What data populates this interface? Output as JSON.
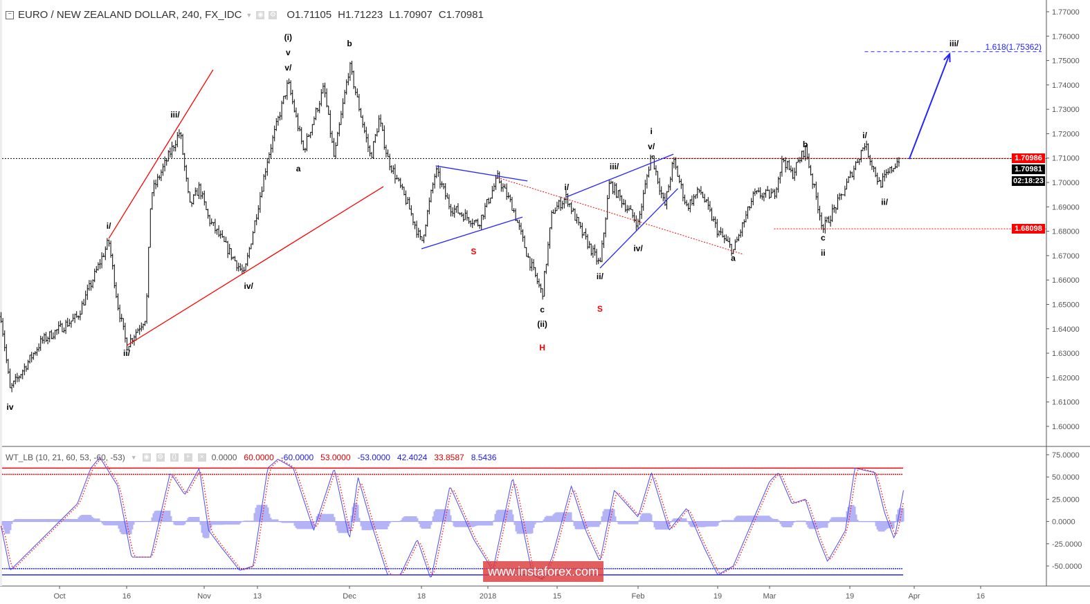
{
  "header": {
    "symbol": "EURO / NEW ZEALAND DOLLAR, 240, FX_IDC",
    "open": "O1.71105",
    "high": "H1.71223",
    "low": "L1.70907",
    "close": "C1.70981"
  },
  "price_tags": {
    "resistance": "1.70986",
    "last": "1.70981",
    "countdown": "02:18:23",
    "support": "1.68098"
  },
  "indicator_header": {
    "name": "WT_LB (10, 21, 60, 53, -60, -53)",
    "values": [
      "0.0000",
      "60.0000",
      "-60.0000",
      "53.0000",
      "-53.0000",
      "42.4024",
      "33.8587",
      "8.5436"
    ],
    "value_colors": [
      "#555555",
      "#e00000",
      "#2020e0",
      "#e00000",
      "#2020e0",
      "#2020e0",
      "#e00000",
      "#2020e0"
    ]
  },
  "watermark": "www.instaforex.com",
  "colors": {
    "up_down_bars": "#000000",
    "red": "#ff0000",
    "blue": "#2323ff",
    "osc_fill": "#b3b3f5"
  },
  "chart_data": [
    {
      "type": "ohlc",
      "title": "EURO / NEW ZEALAND DOLLAR, 240, FX_IDC",
      "ylim": [
        1.595,
        1.772
      ],
      "yticks": [
        "1.77000",
        "1.76000",
        "1.75000",
        "1.74000",
        "1.73000",
        "1.72000",
        "1.71000",
        "1.70000",
        "1.69000",
        "1.68000",
        "1.67000",
        "1.66000",
        "1.65000",
        "1.64000",
        "1.63000",
        "1.62000",
        "1.61000",
        "1.60000"
      ],
      "xticks": [
        {
          "label": "Oct",
          "date": "2017-10-01"
        },
        {
          "label": "16",
          "date": "2017-10-16"
        },
        {
          "label": "Nov",
          "date": "2017-11-01"
        },
        {
          "label": "13",
          "date": "2017-11-13"
        },
        {
          "label": "Dec",
          "date": "2017-12-01"
        },
        {
          "label": "18",
          "date": "2017-12-18"
        },
        {
          "label": "2018",
          "date": "2018-01-01"
        },
        {
          "label": "15",
          "date": "2018-01-15"
        },
        {
          "label": "Feb",
          "date": "2018-02-01"
        },
        {
          "label": "19",
          "date": "2018-02-19"
        },
        {
          "label": "Mar",
          "date": "2018-03-01"
        },
        {
          "label": "19",
          "date": "2018-03-19"
        },
        {
          "label": "Apr",
          "date": "2018-04-01"
        },
        {
          "label": "16",
          "date": "2018-04-16"
        }
      ],
      "price_path": [
        [
          "2017-09-18",
          1.645
        ],
        [
          "2017-09-20",
          1.615
        ],
        [
          "2017-09-27",
          1.635
        ],
        [
          "2017-10-05",
          1.645
        ],
        [
          "2017-10-12",
          1.676
        ],
        [
          "2017-10-14",
          1.65
        ],
        [
          "2017-10-16",
          1.633
        ],
        [
          "2017-10-20",
          1.645
        ],
        [
          "2017-10-21",
          1.695
        ],
        [
          "2017-10-27",
          1.721
        ],
        [
          "2017-10-29",
          1.69
        ],
        [
          "2017-10-31",
          1.698
        ],
        [
          "2017-11-02",
          1.685
        ],
        [
          "2017-11-10",
          1.662
        ],
        [
          "2017-11-15",
          1.71
        ],
        [
          "2017-11-19",
          1.741
        ],
        [
          "2017-11-22",
          1.713
        ],
        [
          "2017-11-26",
          1.739
        ],
        [
          "2017-11-28",
          1.71
        ],
        [
          "2017-12-01",
          1.748
        ],
        [
          "2017-12-06",
          1.71
        ],
        [
          "2017-12-08",
          1.726
        ],
        [
          "2017-12-10",
          1.71
        ],
        [
          "2017-12-15",
          1.69
        ],
        [
          "2017-12-18",
          1.675
        ],
        [
          "2017-12-21",
          1.705
        ],
        [
          "2017-12-24",
          1.69
        ],
        [
          "2017-12-30",
          1.683
        ],
        [
          "2018-01-03",
          1.702
        ],
        [
          "2018-01-06",
          1.69
        ],
        [
          "2018-01-09",
          1.67
        ],
        [
          "2018-01-12",
          1.654
        ],
        [
          "2018-01-14",
          1.688
        ],
        [
          "2018-01-17",
          1.694
        ],
        [
          "2018-01-20",
          1.68
        ],
        [
          "2018-01-24",
          1.666
        ],
        [
          "2018-01-26",
          1.7
        ],
        [
          "2018-02-01",
          1.683
        ],
        [
          "2018-02-04",
          1.712
        ],
        [
          "2018-02-07",
          1.69
        ],
        [
          "2018-02-09",
          1.709
        ],
        [
          "2018-02-12",
          1.69
        ],
        [
          "2018-02-15",
          1.697
        ],
        [
          "2018-02-19",
          1.68
        ],
        [
          "2018-02-22",
          1.672
        ],
        [
          "2018-02-26",
          1.695
        ],
        [
          "2018-03-02",
          1.695
        ],
        [
          "2018-03-04",
          1.71
        ],
        [
          "2018-03-06",
          1.703
        ],
        [
          "2018-03-09",
          1.714
        ],
        [
          "2018-03-13",
          1.681
        ],
        [
          "2018-03-17",
          1.694
        ],
        [
          "2018-03-22",
          1.716
        ],
        [
          "2018-03-25",
          1.699
        ],
        [
          "2018-03-29",
          1.7098
        ]
      ],
      "horizontal_levels": [
        {
          "price": 1.70986,
          "color": "#ff0000",
          "style": "dotted",
          "from": "2018-02-07"
        },
        {
          "price": 1.70981,
          "color": "#000000",
          "style": "dotted",
          "from": "2017-09-15"
        },
        {
          "price": 1.68098,
          "color": "#ff0000",
          "style": "dotted",
          "from": "2018-03-02"
        },
        {
          "price": 1.75362,
          "color": "#2323ff",
          "style": "dashed",
          "from": "2018-03-22"
        }
      ],
      "fib_label": "1.618(1.75362)",
      "trend_lines": [
        {
          "from": [
            "2017-10-12",
            1.677
          ],
          "to": [
            "2017-11-03",
            1.7462
          ],
          "color": "#ff0000",
          "style": "solid"
        },
        {
          "from": [
            "2017-10-16",
            1.6331
          ],
          "to": [
            "2017-12-09",
            1.6983
          ],
          "color": "#ff0000",
          "style": "solid"
        },
        {
          "from": [
            "2017-12-21",
            1.7068
          ],
          "to": [
            "2018-01-09",
            1.7006
          ],
          "color": "#2323ff",
          "style": "solid"
        },
        {
          "from": [
            "2017-12-18",
            1.6728
          ],
          "to": [
            "2018-01-08",
            1.6858
          ],
          "color": "#2323ff",
          "style": "solid"
        },
        {
          "from": [
            "2018-01-03",
            1.702
          ],
          "to": [
            "2018-02-24",
            1.6705
          ],
          "color": "#ff0000",
          "style": "dotted"
        },
        {
          "from": [
            "2018-01-17",
            1.6941
          ],
          "to": [
            "2018-02-09",
            1.7116
          ],
          "color": "#2323ff",
          "style": "solid"
        },
        {
          "from": [
            "2018-01-24",
            1.6649
          ],
          "to": [
            "2018-02-10",
            1.6975
          ],
          "color": "#2323ff",
          "style": "solid"
        }
      ],
      "projection_arrow": {
        "from": [
          "2018-03-31",
          1.7096
        ],
        "to": [
          "2018-04-09",
          1.7527
        ],
        "color": "#2323ff"
      },
      "wave_labels": [
        {
          "text": "iv",
          "date": "2017-09-20",
          "price": 1.6079,
          "color": "#000"
        },
        {
          "text": "i/",
          "date": "2017-10-12",
          "price": 1.6822,
          "color": "#000"
        },
        {
          "text": "ii/",
          "date": "2017-10-16",
          "price": 1.63,
          "color": "#000"
        },
        {
          "text": "iii/",
          "date": "2017-10-26",
          "price": 1.7278,
          "color": "#000"
        },
        {
          "text": "iv/",
          "date": "2017-11-11",
          "price": 1.6575,
          "color": "#000"
        },
        {
          "text": "(i)",
          "date": "2017-11-19",
          "price": 1.7595,
          "color": "#000"
        },
        {
          "text": "v",
          "date": "2017-11-19",
          "price": 1.7533,
          "color": "#000"
        },
        {
          "text": "v/",
          "date": "2017-11-19",
          "price": 1.747,
          "color": "#000"
        },
        {
          "text": "a",
          "date": "2017-11-21",
          "price": 1.7057,
          "color": "#000"
        },
        {
          "text": "b",
          "date": "2017-12-01",
          "price": 1.757,
          "color": "#000"
        },
        {
          "text": "S",
          "date": "2017-12-29",
          "price": 1.6717,
          "color": "#ff0000"
        },
        {
          "text": "c",
          "date": "2018-01-12",
          "price": 1.6479,
          "color": "#000"
        },
        {
          "text": "(ii)",
          "date": "2018-01-12",
          "price": 1.6419,
          "color": "#000"
        },
        {
          "text": "H",
          "date": "2018-01-12",
          "price": 1.6323,
          "color": "#ff0000"
        },
        {
          "text": "i/",
          "date": "2018-01-17",
          "price": 1.698,
          "color": "#000"
        },
        {
          "text": "S",
          "date": "2018-01-24",
          "price": 1.6482,
          "color": "#ff0000"
        },
        {
          "text": "ii/",
          "date": "2018-01-24",
          "price": 1.6615,
          "color": "#000"
        },
        {
          "text": "iii/",
          "date": "2018-01-27",
          "price": 1.7065,
          "color": "#000"
        },
        {
          "text": "i",
          "date": "2018-02-04",
          "price": 1.721,
          "color": "#000"
        },
        {
          "text": "v/",
          "date": "2018-02-04",
          "price": 1.7147,
          "color": "#000"
        },
        {
          "text": "iv/",
          "date": "2018-02-01",
          "price": 1.673,
          "color": "#000"
        },
        {
          "text": "a",
          "date": "2018-02-22",
          "price": 1.669,
          "color": "#000"
        },
        {
          "text": "b",
          "date": "2018-03-09",
          "price": 1.7156,
          "color": "#000"
        },
        {
          "text": "c",
          "date": "2018-03-13",
          "price": 1.6773,
          "color": "#000"
        },
        {
          "text": "ii",
          "date": "2018-03-13",
          "price": 1.6711,
          "color": "#000"
        },
        {
          "text": "i/",
          "date": "2018-03-22",
          "price": 1.7193,
          "color": "#000"
        },
        {
          "text": "ii/",
          "date": "2018-03-26",
          "price": 1.692,
          "color": "#000"
        },
        {
          "text": "iii/",
          "date": "2018-04-10",
          "price": 1.757,
          "color": "#000"
        }
      ]
    },
    {
      "type": "line",
      "title": "WT_LB (10, 21, 60, 53, -60, -53)",
      "ylim": [
        -68,
        78
      ],
      "yticks": [
        "75.0000",
        "50.0000",
        "25.0000",
        "0.0000",
        "-25.0000",
        "-50.0000"
      ],
      "levels": [
        {
          "value": 60,
          "color": "#ff0000"
        },
        {
          "value": 53,
          "color": "#ff0000"
        },
        {
          "value": -53,
          "color": "#2323ff"
        },
        {
          "value": -60,
          "color": "#2323ff"
        },
        {
          "value": 0,
          "color": "#8888ff"
        }
      ],
      "series": [
        {
          "values": [
            [
              "2017-09-18",
              -5
            ],
            [
              "2017-09-20",
              -55
            ],
            [
              "2017-09-27",
              -20
            ],
            [
              "2017-10-05",
              20
            ],
            [
              "2017-10-08",
              60
            ],
            [
              "2017-10-10",
              72
            ],
            [
              "2017-10-14",
              40
            ],
            [
              "2017-10-17",
              -40
            ],
            [
              "2017-10-21",
              -40
            ],
            [
              "2017-10-25",
              55
            ],
            [
              "2017-10-28",
              30
            ],
            [
              "2017-10-31",
              60
            ],
            [
              "2017-11-02",
              -10
            ],
            [
              "2017-11-05",
              -30
            ],
            [
              "2017-11-09",
              -55
            ],
            [
              "2017-11-12",
              -50
            ],
            [
              "2017-11-15",
              60
            ],
            [
              "2017-11-17",
              70
            ],
            [
              "2017-11-20",
              60
            ],
            [
              "2017-11-24",
              -10
            ],
            [
              "2017-11-28",
              60
            ],
            [
              "2017-12-01",
              -20
            ],
            [
              "2017-12-03",
              50
            ],
            [
              "2017-12-06",
              0
            ],
            [
              "2017-12-10",
              -60
            ],
            [
              "2017-12-13",
              -60
            ],
            [
              "2017-12-17",
              -20
            ],
            [
              "2017-12-20",
              -65
            ],
            [
              "2017-12-24",
              40
            ],
            [
              "2017-12-29",
              -20
            ],
            [
              "2018-01-02",
              -55
            ],
            [
              "2018-01-06",
              50
            ],
            [
              "2018-01-10",
              -60
            ],
            [
              "2018-01-12",
              -65
            ],
            [
              "2018-01-14",
              -40
            ],
            [
              "2018-01-18",
              40
            ],
            [
              "2018-01-21",
              -10
            ],
            [
              "2018-01-24",
              -45
            ],
            [
              "2018-01-27",
              35
            ],
            [
              "2018-02-01",
              5
            ],
            [
              "2018-02-04",
              55
            ],
            [
              "2018-02-08",
              -10
            ],
            [
              "2018-02-12",
              15
            ],
            [
              "2018-02-16",
              -30
            ],
            [
              "2018-02-19",
              -60
            ],
            [
              "2018-02-22",
              -50
            ],
            [
              "2018-03-01",
              45
            ],
            [
              "2018-03-03",
              55
            ],
            [
              "2018-03-06",
              20
            ],
            [
              "2018-03-09",
              25
            ],
            [
              "2018-03-12",
              -20
            ],
            [
              "2018-03-14",
              -45
            ],
            [
              "2018-03-18",
              -10
            ],
            [
              "2018-03-20",
              60
            ],
            [
              "2018-03-24",
              55
            ],
            [
              "2018-03-26",
              10
            ],
            [
              "2018-03-28",
              -20
            ],
            [
              "2018-03-30",
              40
            ]
          ]
        }
      ]
    }
  ]
}
